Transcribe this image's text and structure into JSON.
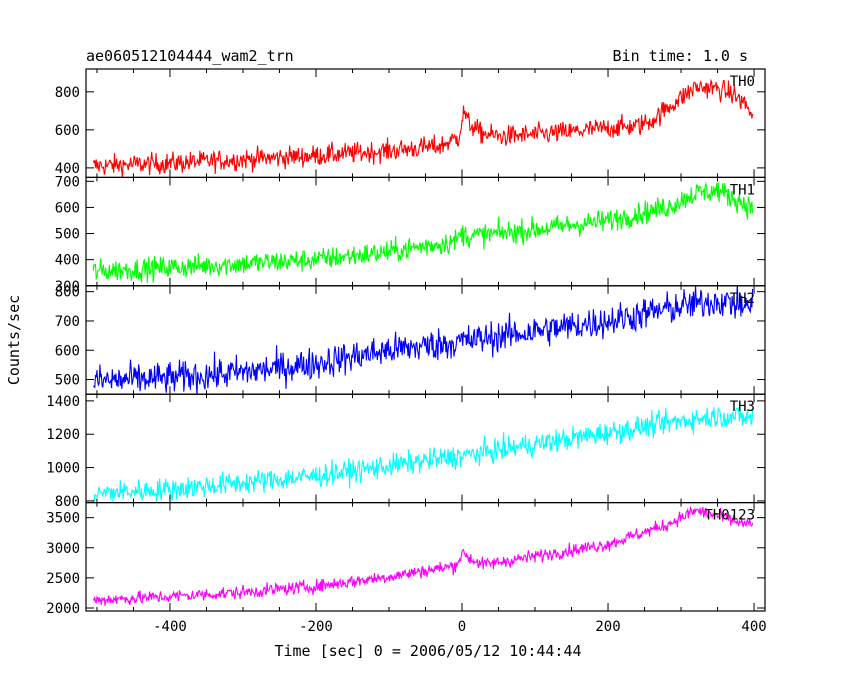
{
  "header": {
    "title": "ae060512104444_wam2_trn",
    "bin_time": "Bin time: 1.0 s"
  },
  "axes": {
    "xlabel": "Time [sec] 0 = 2006/05/12 10:44:44",
    "ylabel": "Counts/sec"
  },
  "chart_data": {
    "type": "line",
    "title": "ae060512104444_wam2_trn",
    "xlabel": "Time [sec] 0 = 2006/05/12 10:44:44",
    "ylabel": "Counts/sec",
    "xlim": [
      -515,
      415
    ],
    "xticks": [
      -400,
      -200,
      0,
      200,
      400
    ],
    "grid": false,
    "legend": "none",
    "series": [
      {
        "name": "TH0",
        "color": "#ff0000",
        "ylim": [
          350,
          920
        ],
        "yticks": [
          400,
          600,
          800
        ],
        "noise": 28,
        "x": [
          -505,
          -400,
          -300,
          -200,
          -100,
          -30,
          -5,
          3,
          8,
          25,
          50,
          100,
          150,
          200,
          240,
          260,
          290,
          320,
          345,
          370,
          390,
          398
        ],
        "values": [
          410,
          425,
          445,
          465,
          490,
          515,
          560,
          700,
          640,
          585,
          565,
          575,
          590,
          610,
          620,
          650,
          740,
          825,
          820,
          790,
          730,
          660
        ]
      },
      {
        "name": "TH1",
        "color": "#00ff00",
        "ylim": [
          300,
          715
        ],
        "yticks": [
          300,
          400,
          500,
          600,
          700
        ],
        "noise": 22,
        "x": [
          -505,
          -400,
          -300,
          -200,
          -100,
          -10,
          0,
          10,
          100,
          200,
          280,
          320,
          350,
          380,
          398
        ],
        "values": [
          355,
          370,
          385,
          400,
          430,
          470,
          500,
          490,
          515,
          550,
          600,
          655,
          665,
          625,
          595
        ]
      },
      {
        "name": "TH2",
        "color": "#0000ff",
        "ylim": [
          450,
          820
        ],
        "yticks": [
          500,
          600,
          700,
          800
        ],
        "noise": 28,
        "x": [
          -505,
          -400,
          -300,
          -200,
          -100,
          0,
          100,
          200,
          300,
          350,
          380,
          398
        ],
        "values": [
          495,
          505,
          525,
          555,
          600,
          630,
          665,
          700,
          750,
          770,
          755,
          745
        ]
      },
      {
        "name": "TH3",
        "color": "#00ffff",
        "ylim": [
          790,
          1440
        ],
        "yticks": [
          800,
          1000,
          1200,
          1400
        ],
        "noise": 35,
        "x": [
          -505,
          -400,
          -300,
          -200,
          -100,
          0,
          100,
          200,
          300,
          350,
          398
        ],
        "values": [
          845,
          870,
          910,
          950,
          1010,
          1070,
          1140,
          1210,
          1280,
          1310,
          1300
        ]
      },
      {
        "name": "TH0123",
        "color": "#ff00ff",
        "ylim": [
          1950,
          3750
        ],
        "yticks": [
          2000,
          2500,
          3000,
          3500
        ],
        "noise": 55,
        "x": [
          -505,
          -400,
          -300,
          -200,
          -100,
          -10,
          3,
          10,
          30,
          100,
          200,
          280,
          320,
          350,
          380,
          398
        ],
        "values": [
          2130,
          2190,
          2260,
          2360,
          2520,
          2700,
          2930,
          2820,
          2720,
          2860,
          3060,
          3380,
          3620,
          3530,
          3420,
          3370
        ]
      }
    ]
  }
}
